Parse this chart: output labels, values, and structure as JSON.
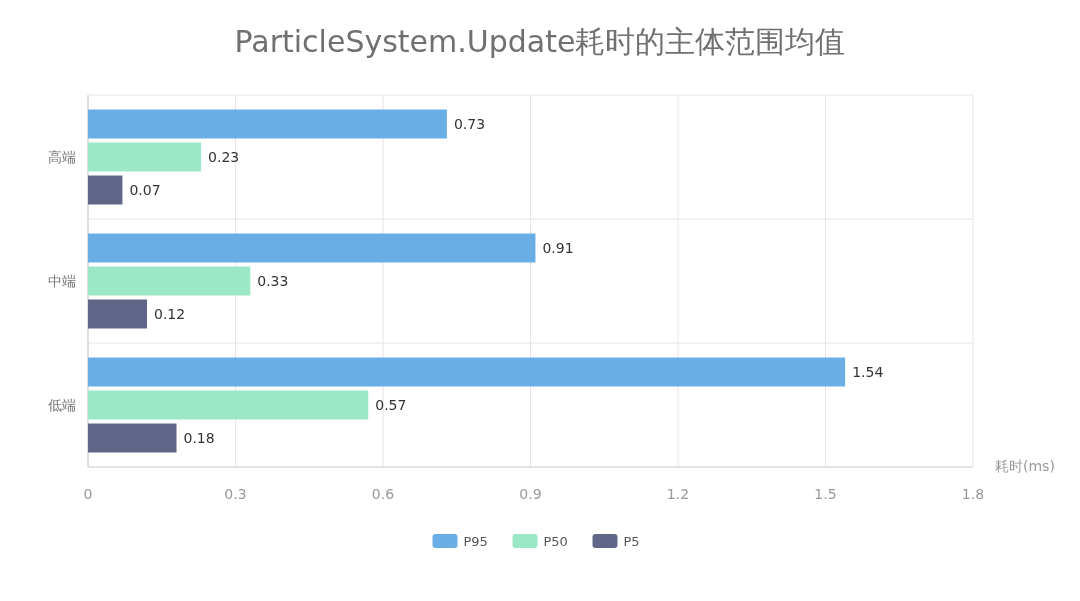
{
  "chart_data": {
    "type": "bar",
    "orientation": "horizontal",
    "title": "ParticleSystem.Update耗时的主体范围均值",
    "xlabel": "耗时(ms)",
    "categories": [
      "高端",
      "中端",
      "低端"
    ],
    "series": [
      {
        "name": "P95",
        "color": "#6aaee6",
        "values": [
          0.73,
          0.91,
          1.54
        ]
      },
      {
        "name": "P50",
        "color": "#9be8c6",
        "values": [
          0.23,
          0.33,
          0.57
        ]
      },
      {
        "name": "P5",
        "color": "#5f6688",
        "values": [
          0.07,
          0.12,
          0.18
        ]
      }
    ],
    "xlim": [
      0,
      1.8
    ],
    "xticks": [
      0,
      {
        "value": 0.3,
        "label": "0.3"
      },
      {
        "value": 0.6,
        "label": "0.6"
      },
      {
        "value": 0.9,
        "label": "0.9"
      },
      {
        "value": 1.2,
        "label": "1.2"
      },
      {
        "value": 1.5,
        "label": "1.5"
      },
      {
        "value": 1.8,
        "label": "1.8"
      }
    ],
    "grid": true,
    "legend": "bottom",
    "data_labels": true
  }
}
